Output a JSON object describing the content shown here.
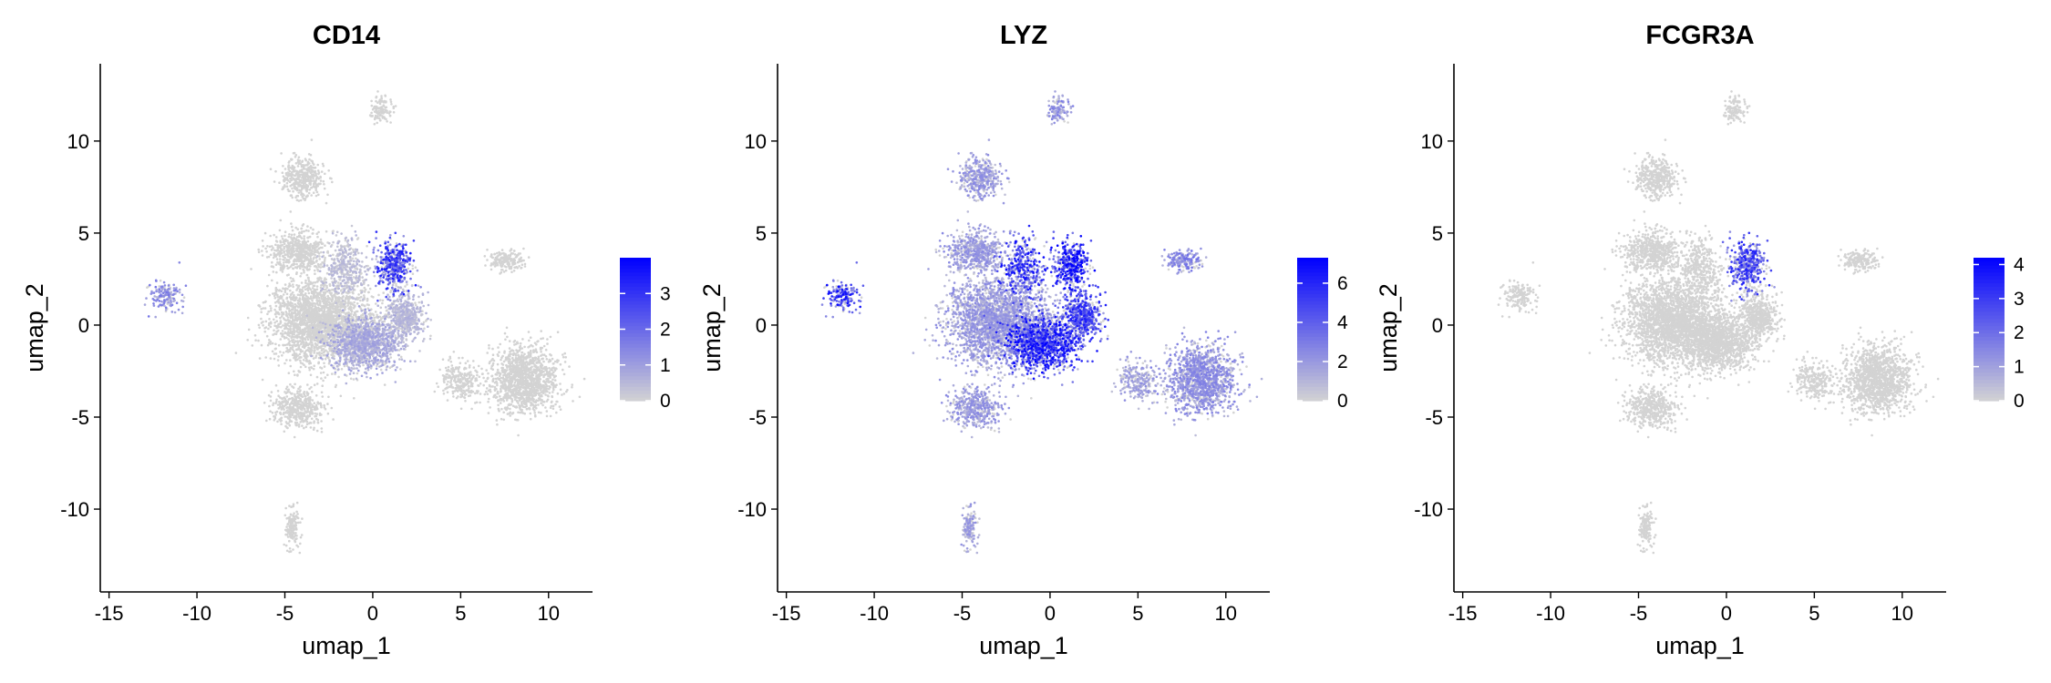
{
  "chart_data": [
    {
      "type": "scatter",
      "title": "CD14",
      "xlabel": "umap_1",
      "ylabel": "umap_2",
      "xlim": [
        -15.5,
        12.5
      ],
      "ylim": [
        -14.5,
        14.2
      ],
      "x_ticks": [
        -15,
        -10,
        -5,
        0,
        5,
        10
      ],
      "y_ticks": [
        -10,
        -5,
        0,
        5,
        10
      ],
      "grid": false,
      "color_scale": {
        "low": "#d3d3d3",
        "high": "#0000ff",
        "min": 0,
        "max": 4,
        "ticks": [
          0,
          1,
          2,
          3
        ]
      },
      "legend_position": "right",
      "expression": {
        "ncMono": 3.0,
        "cMono": 0.5,
        "cMonoLower": 0.9,
        "cMonoRight": 0.6,
        "dcLeft": 1.5,
        "cd16Mono": 0.0,
        "bCells": 0.0,
        "tCells": 0.0,
        "nk": 0.0,
        "platelet": 0.0,
        "small": 0.0,
        "pdc": 0.0
      }
    },
    {
      "type": "scatter",
      "title": "LYZ",
      "xlabel": "umap_1",
      "ylabel": "umap_2",
      "xlim": [
        -15.5,
        12.5
      ],
      "ylim": [
        -14.5,
        14.2
      ],
      "x_ticks": [
        -15,
        -10,
        -5,
        0,
        5,
        10
      ],
      "y_ticks": [
        -10,
        -5,
        0,
        5,
        10
      ],
      "grid": false,
      "color_scale": {
        "low": "#d3d3d3",
        "high": "#0000ff",
        "min": 0,
        "max": 7.3,
        "ticks": [
          0,
          2,
          4,
          6
        ]
      },
      "legend_position": "right",
      "expression": {
        "ncMono": 6.5,
        "cMono": 6.0,
        "cMonoLower": 6.2,
        "cMonoRight": 5.5,
        "dcLeft": 6.0,
        "cd16Mono": 4.5,
        "bCells": 2.5,
        "tCells": 2.2,
        "nk": 2.0,
        "platelet": 3.0,
        "small": 2.5,
        "pdc": 2.0
      }
    },
    {
      "type": "scatter",
      "title": "FCGR3A",
      "xlabel": "umap_1",
      "ylabel": "umap_2",
      "xlim": [
        -15.5,
        12.5
      ],
      "ylim": [
        -14.5,
        14.2
      ],
      "x_ticks": [
        -15,
        -10,
        -5,
        0,
        5,
        10
      ],
      "y_ticks": [
        -10,
        -5,
        0,
        5,
        10
      ],
      "grid": false,
      "color_scale": {
        "low": "#d3d3d3",
        "high": "#0000ff",
        "min": 0,
        "max": 4.2,
        "ticks": [
          0,
          1,
          2,
          3,
          4
        ]
      },
      "legend_position": "right",
      "expression": {
        "ncMono": 3.0,
        "cMono": 0.0,
        "cMonoLower": 0.0,
        "cMonoRight": 0.0,
        "dcLeft": 0.0,
        "cd16Mono": 0.0,
        "bCells": 0.0,
        "tCells": 0.0,
        "nk": 0.0,
        "platelet": 0.0,
        "small": 0.0,
        "pdc": 0.0
      }
    }
  ]
}
